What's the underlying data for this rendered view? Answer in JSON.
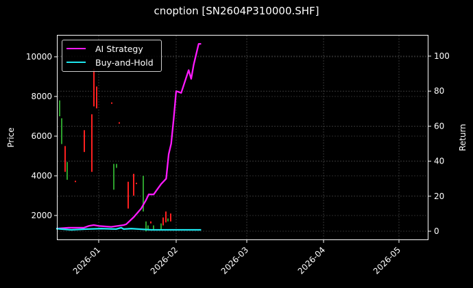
{
  "chart_data": {
    "type": "line",
    "title": "cnoption [SN2604P310000.SHF]",
    "xlabel": "",
    "ylabel_left": "Price",
    "ylabel_right": "Return",
    "x_ticks": [
      "2026-01",
      "2026-02",
      "2026-03",
      "2026-04",
      "2026-05"
    ],
    "y_left_ticks": [
      2000,
      4000,
      6000,
      8000,
      10000
    ],
    "y_right_ticks": [
      0,
      20,
      40,
      60,
      80,
      100
    ],
    "ylim_left": [
      700,
      11000
    ],
    "ylim_right": [
      -5,
      108
    ],
    "grid": true,
    "legend_position": "upper left",
    "background": "#000000",
    "series": [
      {
        "name": "AI Strategy",
        "color": "#ff1aff",
        "axis": "right",
        "x": [
          "2025-12-15",
          "2025-12-20",
          "2025-12-26",
          "2025-12-28",
          "2025-12-30",
          "2026-01-01",
          "2026-01-06",
          "2026-01-11",
          "2026-01-12",
          "2026-01-15",
          "2026-01-18",
          "2026-01-20",
          "2026-01-21",
          "2026-01-23",
          "2026-01-24",
          "2026-01-26",
          "2026-01-28",
          "2026-01-29",
          "2026-01-30",
          "2026-01-31",
          "2026-02-01",
          "2026-02-03",
          "2026-02-06",
          "2026-02-07",
          "2026-02-08",
          "2026-02-10",
          "2026-02-11"
        ],
        "values": [
          1.5,
          2,
          2,
          3,
          3.5,
          3,
          2.5,
          3.5,
          4,
          8,
          13,
          18,
          21,
          21,
          23,
          27,
          30,
          44,
          50,
          64,
          80,
          79,
          92,
          87,
          95,
          107,
          107
        ]
      },
      {
        "name": "Buy-and-Hold",
        "color": "#1ee8f0",
        "axis": "right",
        "x": [
          "2025-12-15",
          "2025-12-21",
          "2025-12-27",
          "2026-01-02",
          "2026-01-08",
          "2026-01-10",
          "2026-01-11",
          "2026-01-14",
          "2026-01-22",
          "2026-02-11"
        ],
        "values": [
          1.5,
          0.8,
          1.2,
          1.5,
          1.2,
          2,
          1.2,
          1.5,
          0.8,
          0.8
        ]
      }
    ],
    "candles": [
      {
        "x": 87,
        "open": 7800,
        "close": 7200,
        "high": 7800,
        "low": 7000,
        "dir": "up"
      },
      {
        "x": 90,
        "open": 6900,
        "close": 5600,
        "high": 6900,
        "low": 5600,
        "dir": "up"
      },
      {
        "x": 95,
        "open": 5500,
        "close": 4200,
        "high": 5500,
        "low": 4200,
        "dir": "down"
      },
      {
        "x": 98,
        "open": 4700,
        "close": 3800,
        "high": 4700,
        "low": 3800,
        "dir": "up"
      },
      {
        "x": 110,
        "open": 3750,
        "close": 3700,
        "high": 3750,
        "low": 3700,
        "dir": "down"
      },
      {
        "x": 123,
        "open": 6300,
        "close": 5200,
        "high": 6300,
        "low": 5200,
        "dir": "down"
      },
      {
        "x": 134,
        "open": 7100,
        "close": 4200,
        "high": 7100,
        "low": 4200,
        "dir": "down"
      },
      {
        "x": 137,
        "open": 9400,
        "close": 7500,
        "high": 9400,
        "low": 7500,
        "dir": "down"
      },
      {
        "x": 141,
        "open": 8500,
        "close": 7400,
        "high": 8500,
        "low": 7400,
        "dir": "down"
      },
      {
        "x": 163,
        "open": 7700,
        "close": 7650,
        "high": 7700,
        "low": 7650,
        "dir": "down"
      },
      {
        "x": 174,
        "open": 6700,
        "close": 6650,
        "high": 6700,
        "low": 6650,
        "dir": "down"
      },
      {
        "x": 166,
        "open": 4600,
        "close": 3300,
        "high": 4600,
        "low": 3300,
        "dir": "up"
      },
      {
        "x": 170,
        "open": 4600,
        "close": 4400,
        "high": 4600,
        "low": 4400,
        "dir": "up"
      },
      {
        "x": 187,
        "open": 3700,
        "close": 2350,
        "high": 3700,
        "low": 2350,
        "dir": "down"
      },
      {
        "x": 195,
        "open": 4100,
        "close": 3000,
        "high": 4100,
        "low": 3000,
        "dir": "down"
      },
      {
        "x": 199,
        "open": 3650,
        "close": 3600,
        "high": 3650,
        "low": 3600,
        "dir": "down"
      },
      {
        "x": 209,
        "open": 4000,
        "close": 2200,
        "high": 4000,
        "low": 2200,
        "dir": "up"
      },
      {
        "x": 213,
        "open": 1700,
        "close": 1200,
        "high": 1700,
        "low": 1200,
        "dir": "up"
      },
      {
        "x": 216,
        "open": 1500,
        "close": 1250,
        "high": 1500,
        "low": 1250,
        "dir": "up"
      },
      {
        "x": 220,
        "open": 1700,
        "close": 1600,
        "high": 1700,
        "low": 1600,
        "dir": "down"
      },
      {
        "x": 224,
        "open": 1500,
        "close": 1250,
        "high": 1500,
        "low": 1250,
        "dir": "up"
      },
      {
        "x": 235,
        "open": 1600,
        "close": 1300,
        "high": 1600,
        "low": 1300,
        "dir": "up"
      },
      {
        "x": 238,
        "open": 1900,
        "close": 1500,
        "high": 1900,
        "low": 1500,
        "dir": "down"
      },
      {
        "x": 242,
        "open": 2200,
        "close": 1650,
        "high": 2200,
        "low": 1650,
        "dir": "down"
      },
      {
        "x": 245,
        "open": 1850,
        "close": 1700,
        "high": 1850,
        "low": 1700,
        "dir": "up"
      },
      {
        "x": 249,
        "open": 2100,
        "close": 1700,
        "high": 2100,
        "low": 1700,
        "dir": "down"
      }
    ],
    "candle_colors": {
      "up": "#2ca02c",
      "down": "#ff2020"
    }
  },
  "legend": {
    "items": [
      {
        "label": "AI Strategy",
        "color": "#ff1aff"
      },
      {
        "label": "Buy-and-Hold",
        "color": "#1ee8f0"
      }
    ]
  }
}
